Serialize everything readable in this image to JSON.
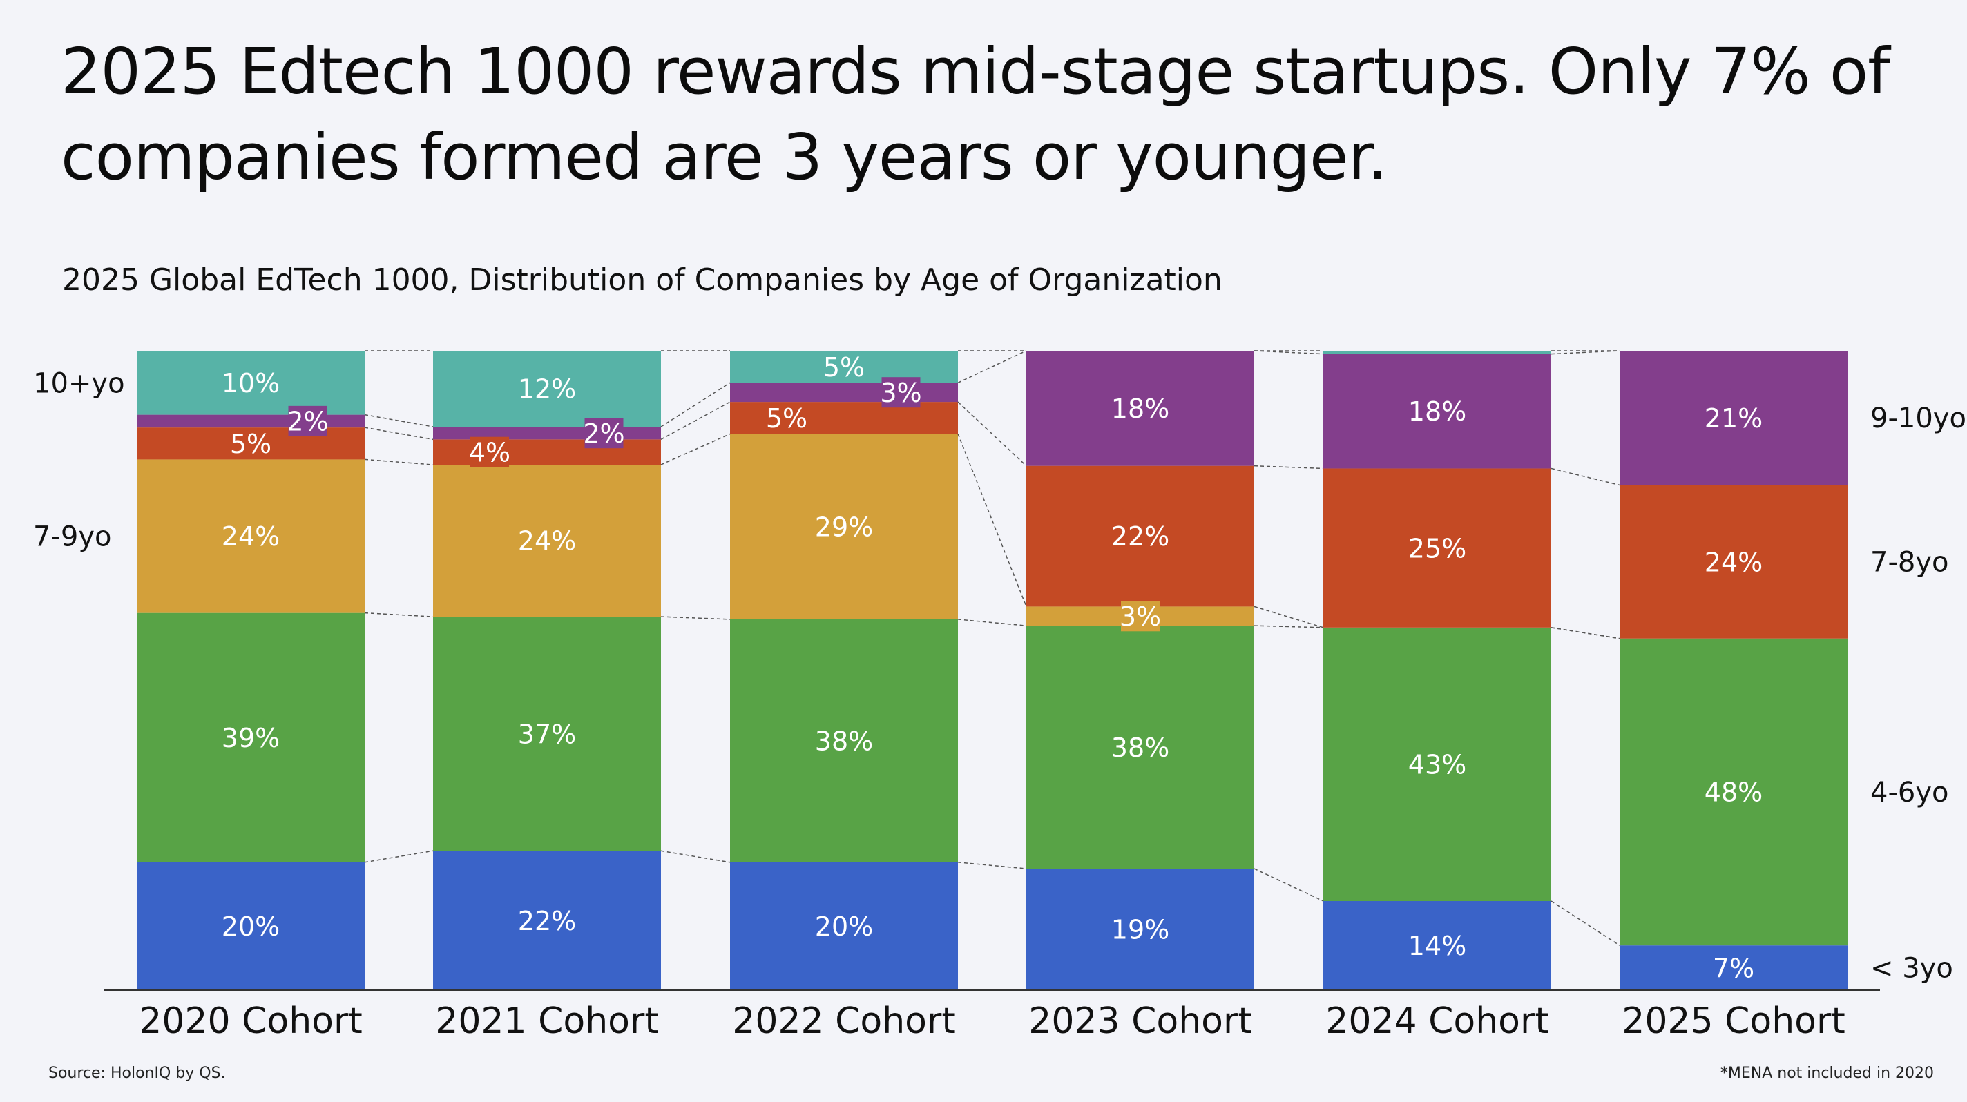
{
  "headline": "2025 Edtech 1000 rewards mid-stage startups. Only 7% of companies formed are 3 years or younger.",
  "subtitle": "2025 Global EdTech 1000, Distribution of Companies by Age of Organization",
  "source": "Source: HolonIQ by QS.",
  "footnote": "*MENA not included in 2020",
  "colors": {
    "blue": "#3a63c8",
    "green": "#58a346",
    "gold": "#d3a03a",
    "orange": "#c44a24",
    "purple": "#833e8c",
    "teal": "#57b3a7",
    "axis": "#333333",
    "connector": "#555555"
  },
  "chart_data": {
    "type": "bar",
    "stacked": true,
    "categories": [
      "2020 Cohort",
      "2021 Cohort",
      "2022 Cohort",
      "2023 Cohort",
      "2024 Cohort",
      "2025 Cohort"
    ],
    "left_labels": [
      {
        "text": "10+yo",
        "series": "10+yo"
      },
      {
        "text": "7-9yo",
        "series": "7-9yo"
      }
    ],
    "right_labels": [
      {
        "text": "9-10yo",
        "series": "9-10yo"
      },
      {
        "text": "7-8yo",
        "series": "7-8yo"
      },
      {
        "text": "4-6yo",
        "series": "4-6yo"
      },
      {
        "text": "< 3yo",
        "series": "< 3yo"
      }
    ],
    "series": [
      {
        "key": "< 3yo",
        "color": "blue",
        "values": [
          20,
          22,
          20,
          19,
          14,
          7
        ],
        "labels": [
          "20%",
          "22%",
          "20%",
          "19%",
          "14%",
          "7%"
        ]
      },
      {
        "key": "4-6yo",
        "color": "green",
        "values": [
          39,
          37,
          38,
          38,
          43,
          48
        ],
        "labels": [
          "39%",
          "37%",
          "38%",
          "38%",
          "43%",
          "48%"
        ]
      },
      {
        "key": "7-9yo",
        "color": "gold",
        "values": [
          24,
          24,
          29,
          3,
          0,
          0
        ],
        "labels": [
          "24%",
          "24%",
          "29%",
          "3%",
          "",
          ""
        ],
        "boxed": [
          false,
          false,
          false,
          true,
          false,
          false
        ]
      },
      {
        "key": "7-8yo",
        "color": "orange",
        "values": [
          5,
          4,
          5,
          22,
          25,
          24
        ],
        "labels": [
          "5%",
          "4%",
          "5%",
          "22%",
          "25%",
          "24%"
        ],
        "boxed": [
          false,
          true,
          false,
          false,
          false,
          false
        ]
      },
      {
        "key": "9-10yo",
        "color": "purple",
        "values": [
          2,
          2,
          3,
          18,
          18,
          21
        ],
        "labels": [
          "2%",
          "2%",
          "3%",
          "18%",
          "18%",
          "21%"
        ],
        "boxed": [
          true,
          true,
          true,
          false,
          false,
          false
        ]
      },
      {
        "key": "10+yo",
        "color": "teal",
        "values": [
          10,
          12,
          5,
          0,
          0.5,
          0
        ],
        "labels": [
          "10%",
          "12%",
          "5%",
          "",
          "",
          ""
        ]
      }
    ],
    "ylim": [
      0,
      100
    ],
    "grid": false,
    "connectors": true
  }
}
